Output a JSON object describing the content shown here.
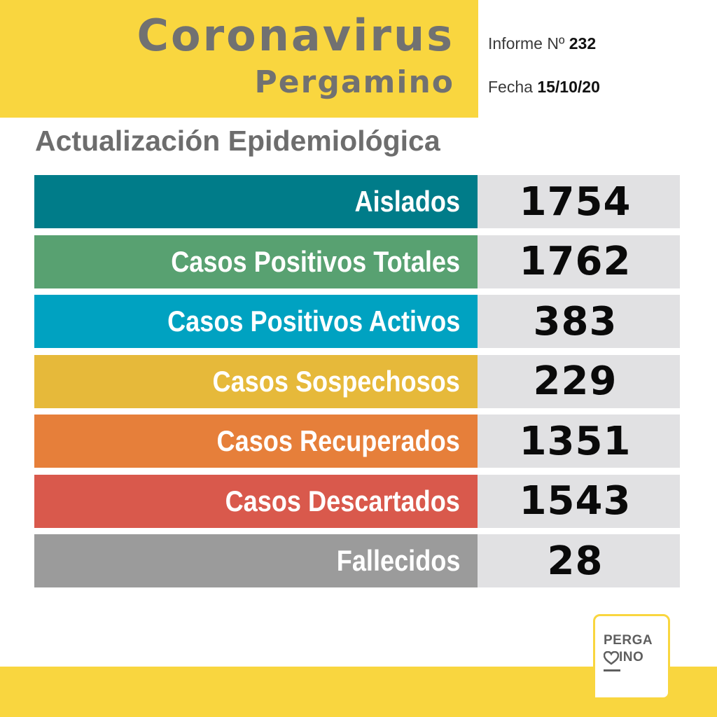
{
  "header": {
    "title": "Coronavirus",
    "subtitle": "Pergamino",
    "informe_label": "Informe Nº",
    "informe_number": "232",
    "fecha_label": "Fecha",
    "fecha_value": "15/10/20"
  },
  "section_title": "Actualización Epidemiológica",
  "stats": [
    {
      "label": "Aislados",
      "value": "1754",
      "color": "#007c89"
    },
    {
      "label": "Casos Positivos Totales",
      "value": "1762",
      "color": "#58a171"
    },
    {
      "label": "Casos Positivos Activos",
      "value": "383",
      "color": "#00a2c1"
    },
    {
      "label": "Casos Sospechosos",
      "value": "229",
      "color": "#e6b93a"
    },
    {
      "label": "Casos Recuperados",
      "value": "1351",
      "color": "#e67f3a"
    },
    {
      "label": "Casos Descartados",
      "value": "1543",
      "color": "#d9594c"
    },
    {
      "label": "Fallecidos",
      "value": "28",
      "color": "#9b9b9b"
    }
  ],
  "logo": {
    "line1": "PERGA",
    "line2": "INO"
  },
  "colors": {
    "brand_yellow": "#f9d63f",
    "title_gray": "#717171",
    "value_bg": "#e1e1e3"
  }
}
